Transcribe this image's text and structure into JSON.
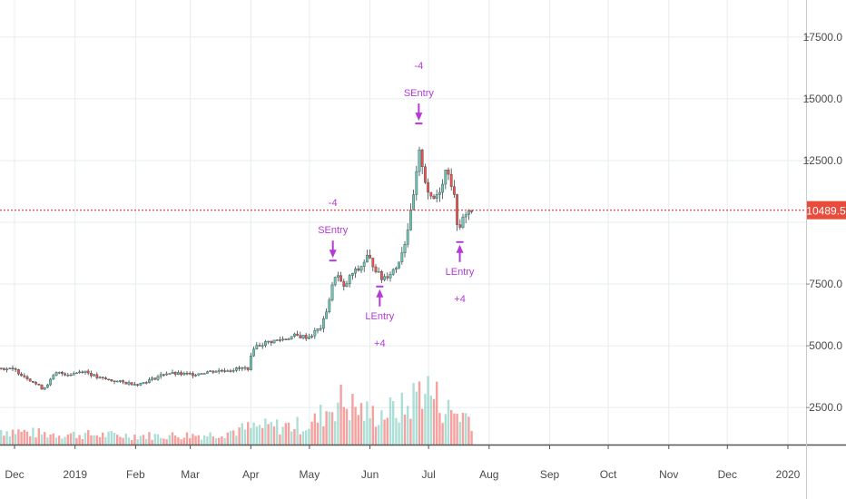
{
  "chart_data": {
    "type": "candlestick",
    "x_axis_labels": [
      "Dec",
      "2019",
      "Feb",
      "Mar",
      "Apr",
      "May",
      "Jun",
      "Jul",
      "Aug",
      "Sep",
      "Oct",
      "Nov",
      "Dec",
      "2020"
    ],
    "y_axis_labels": [
      "2500.0",
      "5000.0",
      "7500.0",
      "12500.0",
      "15000.0",
      "17500.0"
    ],
    "ylim": [
      1000,
      19000
    ],
    "last_price": {
      "value": 10489.5,
      "label": "10489.5",
      "color": "#e74c3c"
    },
    "colors": {
      "up": "#6cc4b4",
      "down": "#ef5350",
      "signal": "#b43ad6",
      "price_line": "#e53935",
      "grid": "#e6ecef"
    },
    "price_path": [
      {
        "date": "2018-11-24",
        "close": 4100
      },
      {
        "date": "2018-12-01",
        "close": 4000
      },
      {
        "date": "2018-12-08",
        "close": 3650
      },
      {
        "date": "2018-12-15",
        "close": 3250
      },
      {
        "date": "2018-12-22",
        "close": 3900
      },
      {
        "date": "2018-12-29",
        "close": 3850
      },
      {
        "date": "2019-01-05",
        "close": 4000
      },
      {
        "date": "2019-01-12",
        "close": 3700
      },
      {
        "date": "2019-01-19",
        "close": 3600
      },
      {
        "date": "2019-01-26",
        "close": 3500
      },
      {
        "date": "2019-02-02",
        "close": 3450
      },
      {
        "date": "2019-02-09",
        "close": 3650
      },
      {
        "date": "2019-02-16",
        "close": 3900
      },
      {
        "date": "2019-02-23",
        "close": 3850
      },
      {
        "date": "2019-03-02",
        "close": 3850
      },
      {
        "date": "2019-03-09",
        "close": 3950
      },
      {
        "date": "2019-03-16",
        "close": 4000
      },
      {
        "date": "2019-03-23",
        "close": 4050
      },
      {
        "date": "2019-03-30",
        "close": 4100
      },
      {
        "date": "2019-04-02",
        "close": 4950
      },
      {
        "date": "2019-04-09",
        "close": 5150
      },
      {
        "date": "2019-04-16",
        "close": 5250
      },
      {
        "date": "2019-04-23",
        "close": 5400
      },
      {
        "date": "2019-04-30",
        "close": 5350
      },
      {
        "date": "2019-05-07",
        "close": 5800
      },
      {
        "date": "2019-05-11",
        "close": 7000
      },
      {
        "date": "2019-05-14",
        "close": 8000
      },
      {
        "date": "2019-05-18",
        "close": 7300
      },
      {
        "date": "2019-05-22",
        "close": 7900
      },
      {
        "date": "2019-05-26",
        "close": 8100
      },
      {
        "date": "2019-05-30",
        "close": 8600
      },
      {
        "date": "2019-06-03",
        "close": 8200
      },
      {
        "date": "2019-06-06",
        "close": 7700
      },
      {
        "date": "2019-06-10",
        "close": 7900
      },
      {
        "date": "2019-06-14",
        "close": 8200
      },
      {
        "date": "2019-06-18",
        "close": 9100
      },
      {
        "date": "2019-06-22",
        "close": 10600
      },
      {
        "date": "2019-06-26",
        "close": 12900
      },
      {
        "date": "2019-06-29",
        "close": 11600
      },
      {
        "date": "2019-07-02",
        "close": 10800
      },
      {
        "date": "2019-07-06",
        "close": 11300
      },
      {
        "date": "2019-07-10",
        "close": 12300
      },
      {
        "date": "2019-07-13",
        "close": 11300
      },
      {
        "date": "2019-07-16",
        "close": 9500
      },
      {
        "date": "2019-07-19",
        "close": 10400
      },
      {
        "date": "2019-07-23",
        "close": 10489.5
      }
    ],
    "volume_path": [
      {
        "date": "2018-11-24",
        "v": 0.3
      },
      {
        "date": "2018-12-15",
        "v": 0.22
      },
      {
        "date": "2019-01-10",
        "v": 0.2
      },
      {
        "date": "2019-02-10",
        "v": 0.18
      },
      {
        "date": "2019-03-10",
        "v": 0.2
      },
      {
        "date": "2019-04-02",
        "v": 0.35
      },
      {
        "date": "2019-05-01",
        "v": 0.4
      },
      {
        "date": "2019-05-15",
        "v": 0.9
      },
      {
        "date": "2019-06-01",
        "v": 0.6
      },
      {
        "date": "2019-06-20",
        "v": 0.75
      },
      {
        "date": "2019-06-27",
        "v": 1.25
      },
      {
        "date": "2019-07-10",
        "v": 0.7
      },
      {
        "date": "2019-07-23",
        "v": 0.55
      }
    ],
    "annotations": [
      {
        "type": "short",
        "label": "SEntry",
        "count": "-4",
        "date": "2019-05-13",
        "price": 8450
      },
      {
        "type": "long",
        "label": "LEntry",
        "count": "+4",
        "date": "2019-06-06",
        "price": 7400
      },
      {
        "type": "short",
        "label": "SEntry",
        "count": "-4",
        "date": "2019-06-26",
        "price": 14000
      },
      {
        "type": "long",
        "label": "LEntry",
        "count": "+4",
        "date": "2019-07-17",
        "price": 9200
      }
    ]
  }
}
